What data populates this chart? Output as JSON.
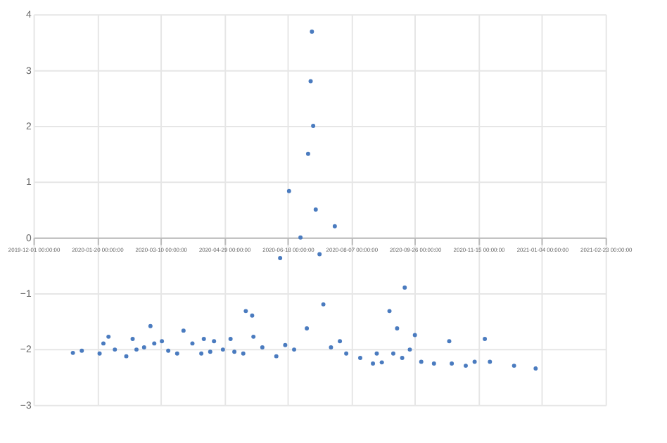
{
  "chart_data": {
    "type": "scatter",
    "x": [
      "2020-01-01",
      "2020-01-08",
      "2020-01-22",
      "2020-01-25",
      "2020-01-29",
      "2020-02-03",
      "2020-02-12",
      "2020-02-17",
      "2020-02-20",
      "2020-02-26",
      "2020-03-02",
      "2020-03-05",
      "2020-03-11",
      "2020-03-16",
      "2020-03-23",
      "2020-03-28",
      "2020-04-04",
      "2020-04-11",
      "2020-04-13",
      "2020-04-18",
      "2020-04-21",
      "2020-04-28",
      "2020-05-04",
      "2020-05-07",
      "2020-05-14",
      "2020-05-16",
      "2020-05-21",
      "2020-05-22",
      "2020-05-29",
      "2020-06-09",
      "2020-06-12",
      "2020-06-16",
      "2020-06-19",
      "2020-06-23",
      "2020-06-28",
      "2020-07-03",
      "2020-07-04",
      "2020-07-06",
      "2020-07-07",
      "2020-07-08",
      "2020-07-10",
      "2020-07-13",
      "2020-07-16",
      "2020-07-22",
      "2020-07-25",
      "2020-07-29",
      "2020-08-03",
      "2020-08-14",
      "2020-08-24",
      "2020-08-27",
      "2020-08-31",
      "2020-09-06",
      "2020-09-09",
      "2020-09-12",
      "2020-09-16",
      "2020-09-18",
      "2020-09-22",
      "2020-09-26",
      "2020-10-01",
      "2020-10-11",
      "2020-10-23",
      "2020-10-25",
      "2020-11-05",
      "2020-11-12",
      "2020-11-20",
      "2020-11-24",
      "2020-12-13",
      "2020-12-30"
    ],
    "series": [
      {
        "color": "#4a7bbf",
        "values": [
          -2.07,
          -2.03,
          -2.08,
          -1.9,
          -1.78,
          -2.01,
          -2.13,
          -1.82,
          -2.01,
          -1.97,
          -1.59,
          -1.9,
          -1.86,
          -2.03,
          -2.08,
          -1.67,
          -1.9,
          -2.08,
          -1.82,
          -2.05,
          -1.86,
          -2.01,
          -1.82,
          -2.05,
          -2.08,
          -1.32,
          -1.4,
          -1.78,
          -1.97,
          -2.13,
          -0.37,
          -1.93,
          0.83,
          -2.01,
          0.0,
          -1.63,
          1.5,
          2.8,
          3.69,
          2.0,
          0.5,
          -0.3,
          -1.2,
          -1.97,
          0.2,
          -1.86,
          -2.08,
          -2.16,
          -2.26,
          -2.08,
          -2.24,
          -1.32,
          -2.08,
          -1.63,
          -2.16,
          -0.9,
          -2.01,
          -1.75,
          -2.23,
          -2.26,
          -1.86,
          -2.26,
          -2.3,
          -2.23,
          -1.82,
          -2.23,
          -2.3,
          -2.35
        ]
      }
    ],
    "xlim": [
      "2019-12-01",
      "2021-02-23"
    ],
    "xticks": [
      {
        "value": "2019-12-01",
        "label": "2019-12-01 00:00:00"
      },
      {
        "value": "2020-01-20",
        "label": "2020-01-20 00:00:00"
      },
      {
        "value": "2020-03-10",
        "label": "2020-03-10 00:00:00"
      },
      {
        "value": "2020-04-29",
        "label": "2020-04-29 00:00:00"
      },
      {
        "value": "2020-06-18",
        "label": "2020-06-18 00:00:00"
      },
      {
        "value": "2020-08-07",
        "label": "2020-08-07 00:00:00"
      },
      {
        "value": "2020-09-26",
        "label": "2020-09-26 00:00:00"
      },
      {
        "value": "2020-11-15",
        "label": "2020-11-15 00:00:00"
      },
      {
        "value": "2021-01-04",
        "label": "2021-01-04 00:00:00"
      },
      {
        "value": "2021-02-23",
        "label": "2021-02-23 00:00:00"
      }
    ],
    "ylim": [
      -3,
      4
    ],
    "yticks": [
      -3,
      -2,
      -1,
      0,
      1,
      2,
      3,
      4
    ],
    "grid": true,
    "marker": "circle",
    "legend": false
  }
}
